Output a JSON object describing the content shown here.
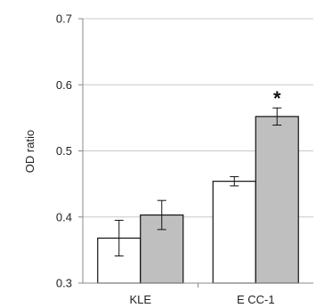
{
  "chart_data": {
    "type": "bar",
    "title": "",
    "xlabel": "",
    "ylabel": "OD ratio",
    "ylim": [
      0.3,
      0.7
    ],
    "yticks": [
      "0.3",
      "0.4",
      "0.5",
      "0.6",
      "0.7"
    ],
    "grid": true,
    "legend": "none",
    "categories": [
      "KLE",
      "E CC-1"
    ],
    "series": [
      {
        "values": [
          0.368,
          0.454
        ],
        "errors": [
          0.027,
          0.007
        ],
        "color": "#ffffff"
      },
      {
        "values": [
          0.403,
          0.552
        ],
        "errors": [
          0.022,
          0.013
        ],
        "color": "#bfbfbf"
      }
    ],
    "annotations": [
      {
        "category": "E CC-1",
        "series": 1,
        "text": "*"
      }
    ]
  }
}
